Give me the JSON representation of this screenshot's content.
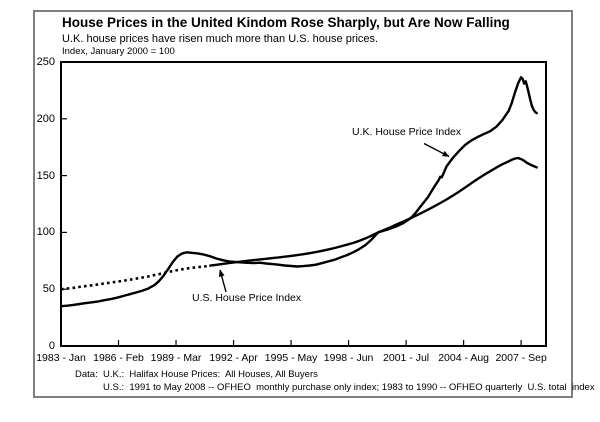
{
  "figure": {
    "title": "House Prices in the United Kindom Rose Sharply, but Are Now Falling",
    "subtitle": "U.K. house prices have risen much more than U.S. house prices.",
    "axis_note": "Index, January 2000 = 100",
    "footer_line1": "Data:  U.K.:  Halifax House Prices:  All Houses, All Buyers",
    "footer_line2": "U.S.:  1991 to May 2008 -- OFHEO  monthly purchase only index; 1983 to 1990 -- OFHEO quarterly  U.S. total  index"
  },
  "colors": {
    "line": "#000000",
    "figure_border": "#7f7f7f",
    "plot_border": "#000000",
    "text": "#000000",
    "background": "#ffffff"
  },
  "chart_data": {
    "type": "line",
    "title": "House Prices in the United Kindom Rose Sharply, but Are Now Falling",
    "subtitle": "U.K. house prices have risen much more than U.S. house prices.",
    "ylabel": "Index, January 2000 = 100",
    "xlabel": "",
    "grid": false,
    "legend_position": "none (in-chart annotations with arrows)",
    "ylim": [
      0,
      250
    ],
    "y_ticks": [
      0,
      50,
      100,
      150,
      200,
      250
    ],
    "x_unit": "months since January 1983",
    "x_domain": [
      0,
      312
    ],
    "x_tick_months": [
      0,
      37,
      74,
      111,
      148,
      185,
      222,
      259,
      296
    ],
    "x_tick_labels": [
      "1983 - Jan",
      "1986 - Feb",
      "1989 - Mar",
      "1992 - Apr",
      "1995 - May",
      "1998 - Jun",
      "2001 - Jul",
      "2004 - Aug",
      "2007 - Sep"
    ],
    "annotations": [
      {
        "text": "U.K. House Price Index",
        "points_to": "uk"
      },
      {
        "text": "U.S. House Price Index",
        "points_to": "us"
      }
    ],
    "series": [
      {
        "id": "uk",
        "name": "U.K. House Price Index",
        "source": "Halifax House Prices: All Houses, All Buyers",
        "style": "solid",
        "points": [
          [
            0,
            35
          ],
          [
            4,
            35.5
          ],
          [
            8,
            36.2
          ],
          [
            12,
            37
          ],
          [
            16,
            37.8
          ],
          [
            20,
            38.5
          ],
          [
            24,
            39.3
          ],
          [
            28,
            40.3
          ],
          [
            32,
            41.3
          ],
          [
            36,
            42.5
          ],
          [
            40,
            44
          ],
          [
            44,
            45.5
          ],
          [
            48,
            47
          ],
          [
            52,
            48.5
          ],
          [
            56,
            50.5
          ],
          [
            60,
            53.5
          ],
          [
            63,
            57
          ],
          [
            66,
            62
          ],
          [
            69,
            68
          ],
          [
            72,
            74
          ],
          [
            75,
            79
          ],
          [
            78,
            81.5
          ],
          [
            81,
            82.5
          ],
          [
            84,
            82
          ],
          [
            88,
            81.5
          ],
          [
            92,
            80.5
          ],
          [
            96,
            79
          ],
          [
            100,
            77
          ],
          [
            104,
            75.5
          ],
          [
            108,
            74.5
          ],
          [
            112,
            74
          ],
          [
            116,
            73.6
          ],
          [
            120,
            73.2
          ],
          [
            124,
            73
          ],
          [
            128,
            73.3
          ],
          [
            132,
            72.6
          ],
          [
            136,
            72.1
          ],
          [
            140,
            71.6
          ],
          [
            144,
            70.9
          ],
          [
            148,
            70.4
          ],
          [
            152,
            70
          ],
          [
            156,
            70.3
          ],
          [
            160,
            70.9
          ],
          [
            164,
            71.6
          ],
          [
            168,
            73
          ],
          [
            172,
            74.5
          ],
          [
            176,
            76
          ],
          [
            180,
            78
          ],
          [
            184,
            80
          ],
          [
            188,
            82.5
          ],
          [
            192,
            85.5
          ],
          [
            196,
            89
          ],
          [
            200,
            94
          ],
          [
            204,
            100
          ],
          [
            210,
            102.5
          ],
          [
            216,
            105.5
          ],
          [
            220,
            108
          ],
          [
            224,
            111.5
          ],
          [
            226,
            114
          ],
          [
            228,
            117
          ],
          [
            232,
            124
          ],
          [
            236,
            131
          ],
          [
            240,
            140
          ],
          [
            243,
            146
          ],
          [
            244,
            149
          ],
          [
            245,
            148.5
          ],
          [
            248,
            158
          ],
          [
            252,
            165.5
          ],
          [
            256,
            171.5
          ],
          [
            260,
            177
          ],
          [
            264,
            181
          ],
          [
            268,
            184
          ],
          [
            272,
            186.5
          ],
          [
            276,
            189
          ],
          [
            280,
            193
          ],
          [
            284,
            199
          ],
          [
            288,
            207
          ],
          [
            290,
            214
          ],
          [
            292,
            223
          ],
          [
            294,
            231
          ],
          [
            295,
            234
          ],
          [
            296,
            236.5
          ],
          [
            297,
            235
          ],
          [
            298,
            231
          ],
          [
            299,
            233
          ],
          [
            300,
            228
          ],
          [
            301,
            222
          ],
          [
            302,
            216
          ],
          [
            303,
            211
          ],
          [
            304,
            208
          ],
          [
            305,
            206
          ],
          [
            306,
            205
          ]
        ]
      },
      {
        "id": "us-early",
        "name": "U.S. House Price Index (1983 to 1990, OFHEO quarterly U.S. total index)",
        "source": "OFHEO quarterly U.S. total index",
        "style": "dotted",
        "points": [
          [
            0,
            50
          ],
          [
            4,
            50.6
          ],
          [
            8,
            51.2
          ],
          [
            12,
            52
          ],
          [
            16,
            52.7
          ],
          [
            20,
            53.4
          ],
          [
            24,
            54.2
          ],
          [
            28,
            55
          ],
          [
            32,
            55.8
          ],
          [
            36,
            56.6
          ],
          [
            40,
            57.4
          ],
          [
            44,
            58.3
          ],
          [
            48,
            59.2
          ],
          [
            52,
            60.2
          ],
          [
            56,
            61.2
          ],
          [
            60,
            62.4
          ],
          [
            64,
            63.6
          ],
          [
            68,
            64.8
          ],
          [
            72,
            66
          ],
          [
            76,
            67.1
          ],
          [
            80,
            68
          ],
          [
            84,
            68.8
          ],
          [
            88,
            69.4
          ],
          [
            92,
            70
          ],
          [
            96,
            70.5
          ]
        ]
      },
      {
        "id": "us",
        "name": "U.S. House Price Index (1991 to May 2008, OFHEO monthly purchase only index)",
        "source": "OFHEO monthly purchase only index",
        "style": "solid",
        "points": [
          [
            96,
            70.8
          ],
          [
            100,
            71.5
          ],
          [
            104,
            72.3
          ],
          [
            108,
            73
          ],
          [
            112,
            73.7
          ],
          [
            116,
            74.3
          ],
          [
            120,
            75
          ],
          [
            124,
            75.6
          ],
          [
            128,
            76.2
          ],
          [
            132,
            76.8
          ],
          [
            136,
            77.4
          ],
          [
            140,
            78
          ],
          [
            144,
            78.6
          ],
          [
            148,
            79.3
          ],
          [
            152,
            80
          ],
          [
            156,
            80.8
          ],
          [
            160,
            81.7
          ],
          [
            164,
            82.7
          ],
          [
            168,
            83.8
          ],
          [
            172,
            85
          ],
          [
            176,
            86.3
          ],
          [
            180,
            87.7
          ],
          [
            184,
            89.2
          ],
          [
            188,
            90.8
          ],
          [
            192,
            92.6
          ],
          [
            196,
            94.8
          ],
          [
            200,
            97.3
          ],
          [
            204,
            100
          ],
          [
            208,
            102.3
          ],
          [
            212,
            104.6
          ],
          [
            216,
            107
          ],
          [
            220,
            109.4
          ],
          [
            224,
            111.9
          ],
          [
            228,
            114.5
          ],
          [
            232,
            117.2
          ],
          [
            236,
            120
          ],
          [
            240,
            122.9
          ],
          [
            244,
            125.9
          ],
          [
            248,
            129
          ],
          [
            252,
            132.3
          ],
          [
            256,
            135.8
          ],
          [
            260,
            139.5
          ],
          [
            264,
            143.3
          ],
          [
            268,
            147
          ],
          [
            272,
            150.5
          ],
          [
            276,
            153.8
          ],
          [
            280,
            157
          ],
          [
            284,
            160
          ],
          [
            288,
            162.5
          ],
          [
            290,
            164
          ],
          [
            292,
            165
          ],
          [
            294,
            165.5
          ],
          [
            296,
            164.5
          ],
          [
            298,
            163
          ],
          [
            300,
            161
          ],
          [
            303,
            159
          ],
          [
            306,
            157.2
          ]
        ]
      }
    ]
  }
}
